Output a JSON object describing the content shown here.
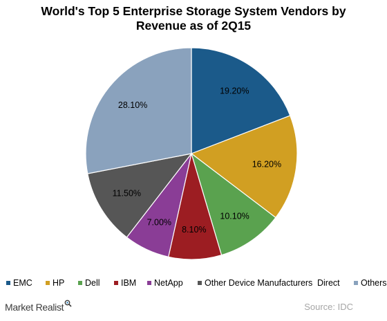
{
  "chart_data": {
    "type": "pie",
    "title_lines": [
      "World's Top 5 Enterprise Storage System Vendors by",
      "Revenue as of 2Q15"
    ],
    "slices": [
      {
        "name": "EMC",
        "value": 19.2,
        "label": "19.20%",
        "color": "#1b5a8a"
      },
      {
        "name": "HP",
        "value": 16.2,
        "label": "16.20%",
        "color": "#d19f22"
      },
      {
        "name": "Dell",
        "value": 10.1,
        "label": "10.10%",
        "color": "#5aa24f"
      },
      {
        "name": "IBM",
        "value": 8.1,
        "label": "8.10%",
        "color": "#9c1d22"
      },
      {
        "name": "NetApp",
        "value": 7.0,
        "label": "7.00%",
        "color": "#8a3d96"
      },
      {
        "name": "Other Device Manufacturers",
        "value": 11.5,
        "label": "11.50%",
        "color": "#565656"
      },
      {
        "name": "Direct",
        "value": 0,
        "label": "",
        "color": "#2a7fb8"
      },
      {
        "name": "Others",
        "value": 28.1,
        "label": "28.10%",
        "color": "#8aa2bd"
      }
    ],
    "start_angle": "12 o'clock",
    "direction": "clockwise",
    "legend_position": "bottom"
  },
  "legend": {
    "items": [
      {
        "label": "EMC",
        "color": "#1b5a8a",
        "swatch": true
      },
      {
        "label": "HP",
        "color": "#d19f22",
        "swatch": true
      },
      {
        "label": "Dell",
        "color": "#5aa24f",
        "swatch": true
      },
      {
        "label": "IBM",
        "color": "#9c1d22",
        "swatch": true
      },
      {
        "label": "NetApp",
        "color": "#8a3d96",
        "swatch": true
      },
      {
        "label": "Other Device Manufacturers",
        "color": "#565656",
        "swatch": true
      },
      {
        "label": "Direct",
        "color": "#2a7fb8",
        "swatch": false
      },
      {
        "label": "Others",
        "color": "#8aa2bd",
        "swatch": true
      }
    ]
  },
  "footer": {
    "brand": "Market Realist",
    "brand_icon": "magnifier-icon",
    "source": "Source: IDC"
  }
}
